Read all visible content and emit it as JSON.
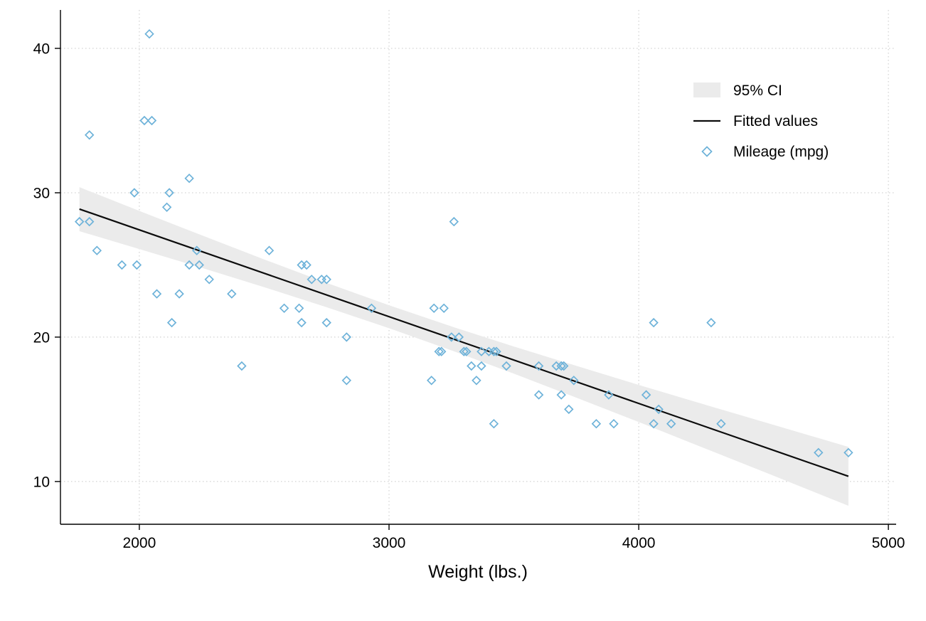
{
  "chart_data": {
    "type": "scatter",
    "title": "",
    "xlabel": "Weight (lbs.)",
    "ylabel": "",
    "x_ticks": [
      2000,
      3000,
      4000,
      5000
    ],
    "y_ticks": [
      10,
      20,
      30,
      40
    ],
    "xlim": [
      1684,
      5031
    ],
    "ylim": [
      7.04,
      42.66
    ],
    "grid": true,
    "legend_position": "upper-right-inside",
    "colors": {
      "marker": "#6db2d9",
      "fit_line": "#000000",
      "ci_band": "#ebebeb"
    },
    "legend": [
      {
        "label": "95% CI",
        "swatch": "area"
      },
      {
        "label": "Fitted values",
        "swatch": "line"
      },
      {
        "label": "Mileage (mpg)",
        "swatch": "diamond-marker"
      }
    ],
    "series": [
      {
        "name": "95% CI",
        "type": "band",
        "x": [
          1760,
          2000,
          2250,
          2500,
          2750,
          3000,
          3250,
          3500,
          3750,
          4000,
          4250,
          4500,
          4840
        ],
        "upper": [
          30.39,
          28.74,
          27.05,
          25.38,
          23.76,
          22.21,
          20.74,
          19.35,
          18.01,
          16.69,
          15.4,
          14.13,
          12.4
        ],
        "lower": [
          27.34,
          26.1,
          24.8,
          23.46,
          22.07,
          20.62,
          19.08,
          17.47,
          15.81,
          14.12,
          12.4,
          10.68,
          8.32
        ]
      },
      {
        "name": "Fitted values",
        "type": "line",
        "x": [
          1760,
          4840
        ],
        "y": [
          28.87,
          10.36
        ]
      },
      {
        "name": "Mileage (mpg)",
        "type": "scatter",
        "marker": "open-diamond",
        "points": [
          [
            2930,
            22
          ],
          [
            3350,
            17
          ],
          [
            2640,
            22
          ],
          [
            3250,
            20
          ],
          [
            4080,
            15
          ],
          [
            3670,
            18
          ],
          [
            2230,
            26
          ],
          [
            3280,
            20
          ],
          [
            3880,
            16
          ],
          [
            3400,
            19
          ],
          [
            4330,
            14
          ],
          [
            3900,
            14
          ],
          [
            4290,
            21
          ],
          [
            2110,
            29
          ],
          [
            3690,
            16
          ],
          [
            3180,
            22
          ],
          [
            3220,
            22
          ],
          [
            2750,
            24
          ],
          [
            3430,
            19
          ],
          [
            2120,
            30
          ],
          [
            3600,
            18
          ],
          [
            3600,
            16
          ],
          [
            3740,
            17
          ],
          [
            1800,
            28
          ],
          [
            2650,
            21
          ],
          [
            4840,
            12
          ],
          [
            4720,
            12
          ],
          [
            3830,
            14
          ],
          [
            2580,
            22
          ],
          [
            4060,
            14
          ],
          [
            3720,
            15
          ],
          [
            3370,
            18
          ],
          [
            4130,
            14
          ],
          [
            2830,
            20
          ],
          [
            4060,
            21
          ],
          [
            3310,
            19
          ],
          [
            3300,
            19
          ],
          [
            3690,
            18
          ],
          [
            3370,
            19
          ],
          [
            2730,
            24
          ],
          [
            4030,
            16
          ],
          [
            3260,
            28
          ],
          [
            1800,
            34
          ],
          [
            2200,
            25
          ],
          [
            2520,
            26
          ],
          [
            3330,
            18
          ],
          [
            3700,
            18
          ],
          [
            3470,
            18
          ],
          [
            3210,
            19
          ],
          [
            3200,
            19
          ],
          [
            3420,
            19
          ],
          [
            2690,
            24
          ],
          [
            2830,
            17
          ],
          [
            2070,
            23
          ],
          [
            2650,
            25
          ],
          [
            2370,
            23
          ],
          [
            2020,
            35
          ],
          [
            2280,
            24
          ],
          [
            2750,
            21
          ],
          [
            2130,
            21
          ],
          [
            2240,
            25
          ],
          [
            1760,
            28
          ],
          [
            1980,
            30
          ],
          [
            3420,
            14
          ],
          [
            1830,
            26
          ],
          [
            2050,
            35
          ],
          [
            2410,
            18
          ],
          [
            2200,
            31
          ],
          [
            2670,
            25
          ],
          [
            2160,
            23
          ],
          [
            2040,
            41
          ],
          [
            1930,
            25
          ],
          [
            1990,
            25
          ],
          [
            3170,
            17
          ]
        ]
      }
    ]
  }
}
